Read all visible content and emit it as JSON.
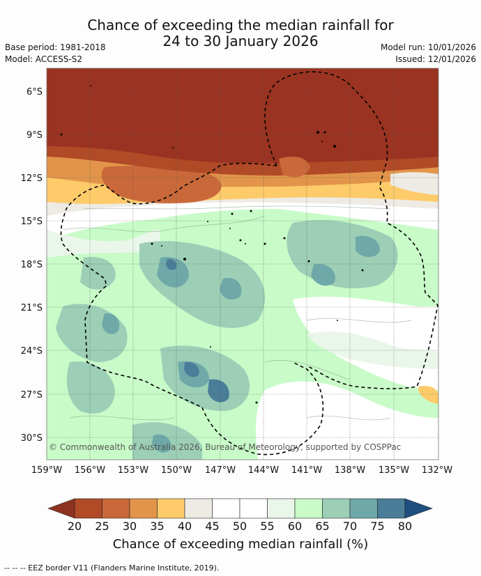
{
  "title_line1": "Chance of exceeding the median rainfall for",
  "title_line2": "24 to 30 January 2026",
  "base_period": "Base period: 1981-2018",
  "model": "Model: ACCESS-S2",
  "model_run": "Model run: 10/01/2026",
  "issued": "Issued: 12/01/2026",
  "copyright": "© Commonwealth of Australia 2026, Bureau of Meteorology, supported by COSPPac",
  "colorbar_title": "Chance of exceeding median rainfall (%)",
  "eez_note": "--  --  -- EEZ border V11 (Flanders Marine Institute, 2019).",
  "lat_labels": [
    "6°S",
    "9°S",
    "12°S",
    "15°S",
    "18°S",
    "21°S",
    "24°S",
    "27°S",
    "30°S"
  ],
  "lon_labels": [
    "159°W",
    "156°W",
    "153°W",
    "150°W",
    "147°W",
    "144°W",
    "141°W",
    "138°W",
    "135°W",
    "132°W"
  ],
  "colorbar": {
    "ticks": [
      "20",
      "25",
      "30",
      "35",
      "40",
      "45",
      "50",
      "55",
      "60",
      "65",
      "70",
      "75",
      "80"
    ],
    "colors": [
      "#8e3320",
      "#b04a27",
      "#c9693a",
      "#e2954a",
      "#fdcb6a",
      "#eeebe5",
      "#ffffff",
      "#ffffff",
      "#eaf6ea",
      "#c8fbc8",
      "#9ccfb6",
      "#6fa8a8",
      "#4a7d98",
      "#1e4f7e"
    ]
  },
  "chart_data": {
    "type": "heatmap",
    "title": "Chance of exceeding the median rainfall for 24 to 30 January 2026",
    "xlabel": "",
    "ylabel": "",
    "x_range": [
      -159,
      -132
    ],
    "y_range": [
      -32,
      -4
    ],
    "units": "%"
  }
}
